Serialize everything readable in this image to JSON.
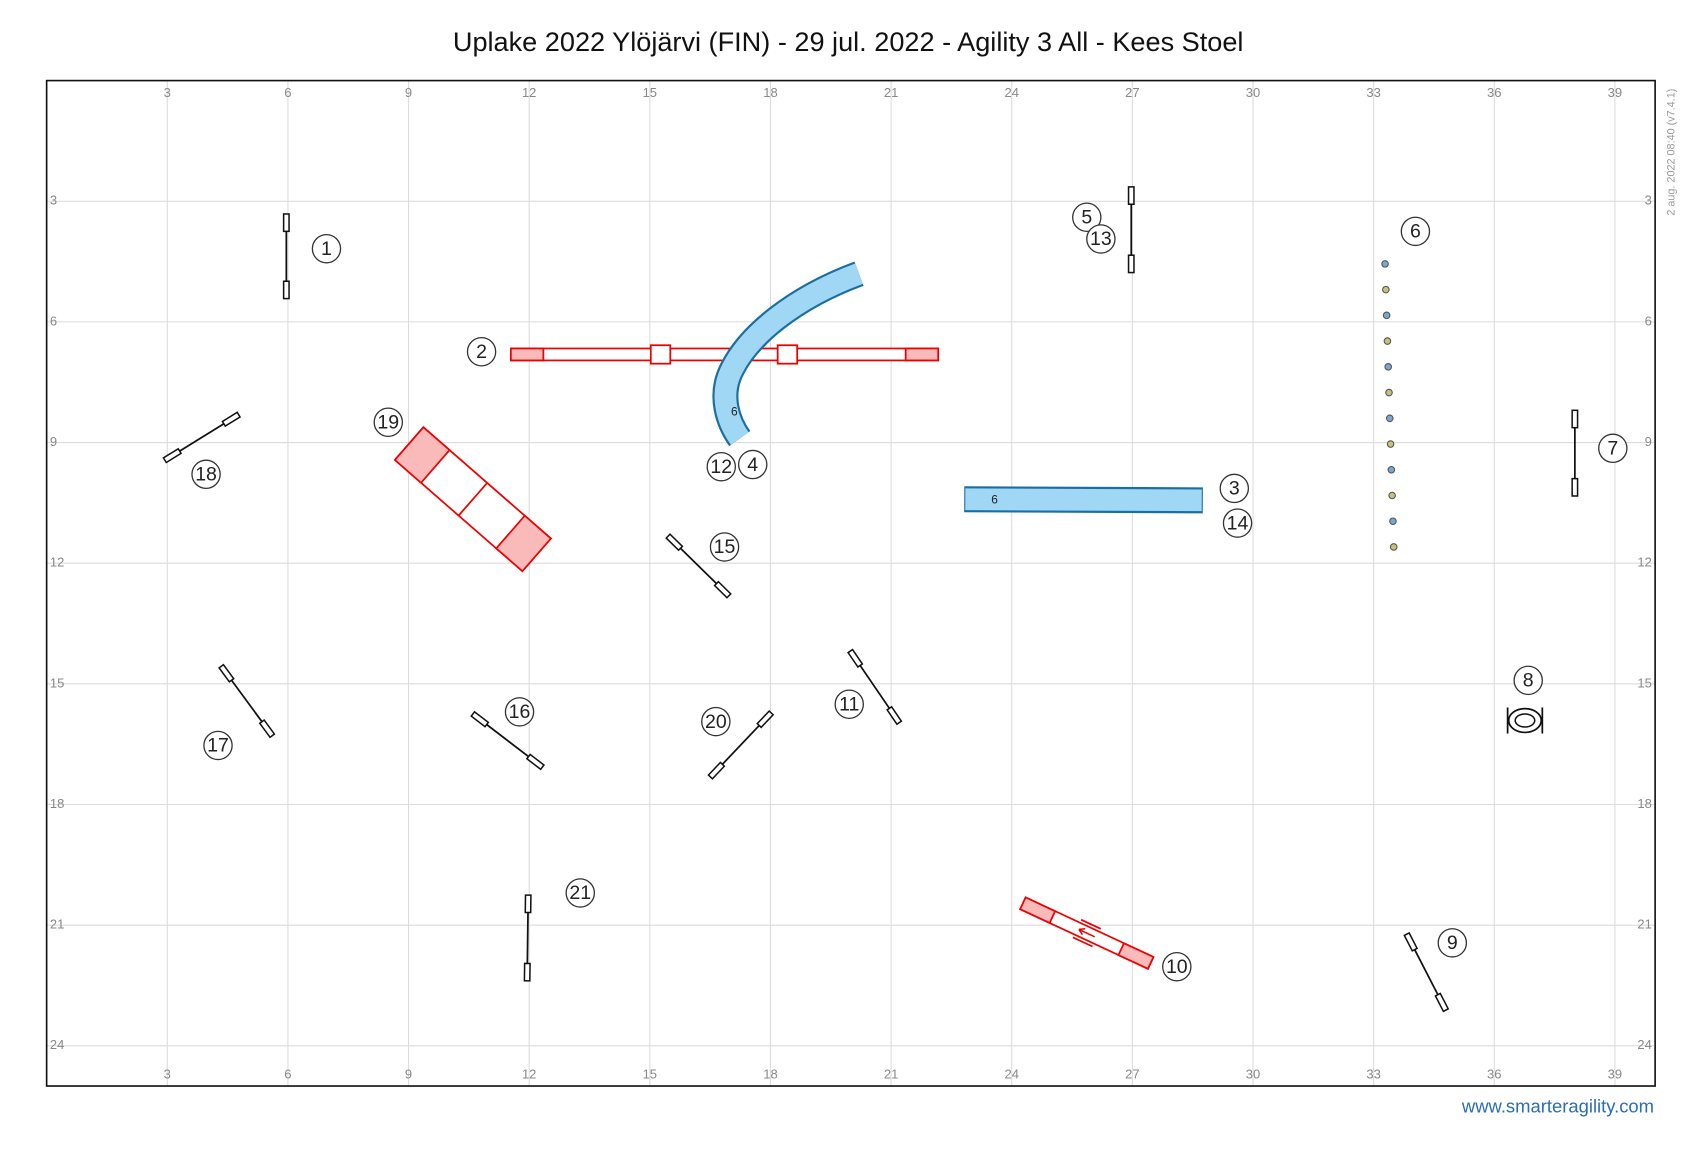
{
  "title": "Uplake 2022 Ylöjärvi (FIN) - 29 jul. 2022 - Agility 3 All - Kees Stoel",
  "watermark": "2 aug. 2022 08:40  (v7.4.1)",
  "footer": "www.smarteragility.com",
  "field": {
    "xlim": [
      0,
      40
    ],
    "ylim": [
      0,
      25
    ],
    "xticks": [
      3,
      6,
      9,
      12,
      15,
      18,
      21,
      24,
      27,
      30,
      33,
      36,
      39
    ],
    "yticks": [
      3,
      6,
      9,
      12,
      15,
      18,
      21,
      24
    ]
  },
  "numbers": [
    "1",
    "2",
    "3",
    "4",
    "5",
    "6",
    "7",
    "8",
    "9",
    "10",
    "11",
    "12",
    "13",
    "14",
    "15",
    "16",
    "17",
    "18",
    "19",
    "20",
    "21"
  ],
  "tunnel_labels": [
    "6",
    "6"
  ]
}
